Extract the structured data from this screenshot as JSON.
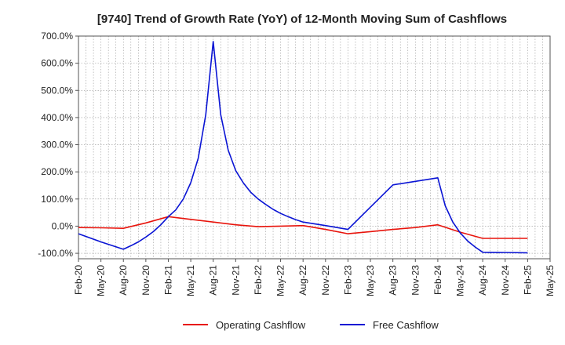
{
  "chart_data": {
    "type": "line",
    "title": "[9740]  Trend of Growth Rate (YoY) of 12-Month Moving Sum of Cashflows",
    "xlabel": "",
    "ylabel": "",
    "ylim": [
      -120,
      700
    ],
    "y_ticks": [
      700,
      600,
      500,
      400,
      300,
      200,
      100,
      0,
      -100
    ],
    "y_tick_labels": [
      "700.0%",
      "600.0%",
      "500.0%",
      "400.0%",
      "300.0%",
      "200.0%",
      "100.0%",
      "0.0%",
      "-100.0%"
    ],
    "x_range": [
      "2020-02",
      "2025-05"
    ],
    "x_tick_labels": [
      "Feb-20",
      "May-20",
      "Aug-20",
      "Nov-20",
      "Feb-21",
      "May-21",
      "Aug-21",
      "Nov-21",
      "Feb-22",
      "May-22",
      "Aug-22",
      "Nov-22",
      "Feb-23",
      "May-23",
      "Aug-23",
      "Nov-23",
      "Feb-24",
      "May-24",
      "Aug-24",
      "Nov-24",
      "Feb-25",
      "May-25"
    ],
    "grid": true,
    "legend_position": "bottom",
    "series": [
      {
        "name": "Operating Cashflow",
        "color": "#e8140c",
        "points": [
          [
            "2020-02",
            -5
          ],
          [
            "2020-05",
            -6
          ],
          [
            "2020-08",
            -8
          ],
          [
            "2020-11",
            12
          ],
          [
            "2021-02",
            35
          ],
          [
            "2021-05",
            25
          ],
          [
            "2021-08",
            15
          ],
          [
            "2021-11",
            5
          ],
          [
            "2022-02",
            -2
          ],
          [
            "2022-05",
            0
          ],
          [
            "2022-08",
            2
          ],
          [
            "2022-11",
            -12
          ],
          [
            "2023-02",
            -28
          ],
          [
            "2023-05",
            -20
          ],
          [
            "2023-08",
            -12
          ],
          [
            "2023-11",
            -5
          ],
          [
            "2024-02",
            5
          ],
          [
            "2024-05",
            -22
          ],
          [
            "2024-08",
            -45
          ],
          [
            "2024-11",
            -45
          ],
          [
            "2025-02",
            -45
          ]
        ]
      },
      {
        "name": "Free Cashflow",
        "color": "#0a14d4",
        "points": [
          [
            "2020-02",
            -28
          ],
          [
            "2020-05",
            -58
          ],
          [
            "2020-08",
            -85
          ],
          [
            "2020-09",
            -72
          ],
          [
            "2020-10",
            -58
          ],
          [
            "2020-11",
            -40
          ],
          [
            "2020-12",
            -20
          ],
          [
            "2021-01",
            5
          ],
          [
            "2021-02",
            35
          ],
          [
            "2021-03",
            60
          ],
          [
            "2021-04",
            100
          ],
          [
            "2021-05",
            160
          ],
          [
            "2021-06",
            250
          ],
          [
            "2021-07",
            410
          ],
          [
            "2021-08",
            680
          ],
          [
            "2021-09",
            410
          ],
          [
            "2021-10",
            280
          ],
          [
            "2021-11",
            205
          ],
          [
            "2021-12",
            160
          ],
          [
            "2022-01",
            125
          ],
          [
            "2022-02",
            100
          ],
          [
            "2022-03",
            80
          ],
          [
            "2022-04",
            62
          ],
          [
            "2022-05",
            47
          ],
          [
            "2022-06",
            35
          ],
          [
            "2022-07",
            24
          ],
          [
            "2022-08",
            15
          ],
          [
            "2022-11",
            2
          ],
          [
            "2023-02",
            -12
          ],
          [
            "2023-05",
            70
          ],
          [
            "2023-08",
            152
          ],
          [
            "2023-11",
            165
          ],
          [
            "2024-02",
            178
          ],
          [
            "2024-03",
            75
          ],
          [
            "2024-04",
            15
          ],
          [
            "2024-05",
            -25
          ],
          [
            "2024-06",
            -55
          ],
          [
            "2024-07",
            -77
          ],
          [
            "2024-08",
            -96
          ],
          [
            "2024-11",
            -97
          ],
          [
            "2025-02",
            -98
          ]
        ]
      }
    ]
  }
}
